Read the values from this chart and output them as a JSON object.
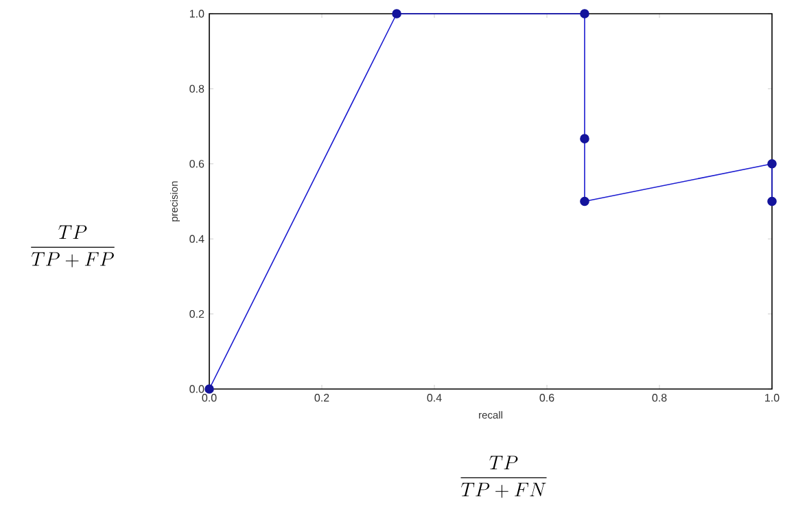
{
  "chart_data": {
    "type": "line",
    "xlabel": "recall",
    "ylabel": "precision",
    "x": [
      0,
      0.333,
      0.667,
      0.667,
      1.0,
      1.0
    ],
    "series": [
      {
        "color": "#1a1ad0",
        "values": [
          0,
          1.0,
          1.0,
          0.5,
          0.6,
          0.5
        ]
      },
      {
        "type": "scatter",
        "color": "#14149c",
        "x": [
          0.667
        ],
        "values": [
          0.667
        ]
      }
    ],
    "marker": "circle",
    "line_style": "solid",
    "xlim": [
      0,
      1
    ],
    "ylim": [
      0,
      1
    ],
    "xticks": [
      {
        "value": 0,
        "label": "0.0"
      },
      {
        "value": 0.2,
        "label": "0.2"
      },
      {
        "value": 0.4,
        "label": "0.4"
      },
      {
        "value": 0.6,
        "label": "0.6"
      },
      {
        "value": 0.8,
        "label": "0.8"
      },
      {
        "value": 1.0,
        "label": "1.0"
      }
    ],
    "yticks": [
      {
        "value": 0,
        "label": "0.0"
      },
      {
        "value": 0.2,
        "label": "0.2"
      },
      {
        "value": 0.4,
        "label": "0.4"
      },
      {
        "value": 0.6,
        "label": "0.6"
      },
      {
        "value": 0.8,
        "label": "0.8"
      },
      {
        "value": 1.0,
        "label": "1.0"
      }
    ],
    "annotations": [
      "\\frac{TP}{TP+FP}",
      "\\frac{TP}{TP+FN}"
    ]
  }
}
